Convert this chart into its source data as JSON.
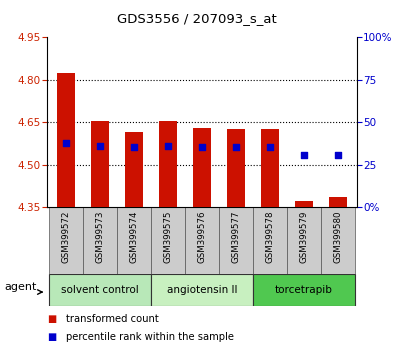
{
  "title": "GDS3556 / 207093_s_at",
  "samples": [
    "GSM399572",
    "GSM399573",
    "GSM399574",
    "GSM399575",
    "GSM399576",
    "GSM399577",
    "GSM399578",
    "GSM399579",
    "GSM399580"
  ],
  "bar_tops": [
    4.825,
    4.655,
    4.615,
    4.655,
    4.63,
    4.625,
    4.625,
    4.37,
    4.385
  ],
  "bar_bottom": 4.35,
  "blue_y": [
    4.575,
    4.565,
    4.562,
    4.565,
    4.562,
    4.562,
    4.562,
    4.535,
    4.535
  ],
  "ylim_left": [
    4.35,
    4.95
  ],
  "ylim_right": [
    0,
    100
  ],
  "yticks_left": [
    4.35,
    4.5,
    4.65,
    4.8,
    4.95
  ],
  "yticks_right": [
    0,
    25,
    50,
    75,
    100
  ],
  "yticks_right_labels": [
    "0%",
    "25",
    "50",
    "75",
    "100%"
  ],
  "hlines": [
    4.5,
    4.65,
    4.8
  ],
  "groups": [
    {
      "label": "solvent control",
      "start": 0,
      "end": 3,
      "color": "#b8e8b8"
    },
    {
      "label": "angiotensin II",
      "start": 3,
      "end": 6,
      "color": "#c8f0c0"
    },
    {
      "label": "torcetrapib",
      "start": 6,
      "end": 9,
      "color": "#50c850"
    }
  ],
  "bar_color": "#cc1100",
  "blue_color": "#0000cc",
  "bar_width": 0.55,
  "agent_label": "agent",
  "legend_red": "transformed count",
  "legend_blue": "percentile rank within the sample",
  "bgcolor": "#ffffff",
  "left_tick_color": "#cc2200",
  "right_tick_color": "#0000cc",
  "label_bgcolor": "#cccccc"
}
